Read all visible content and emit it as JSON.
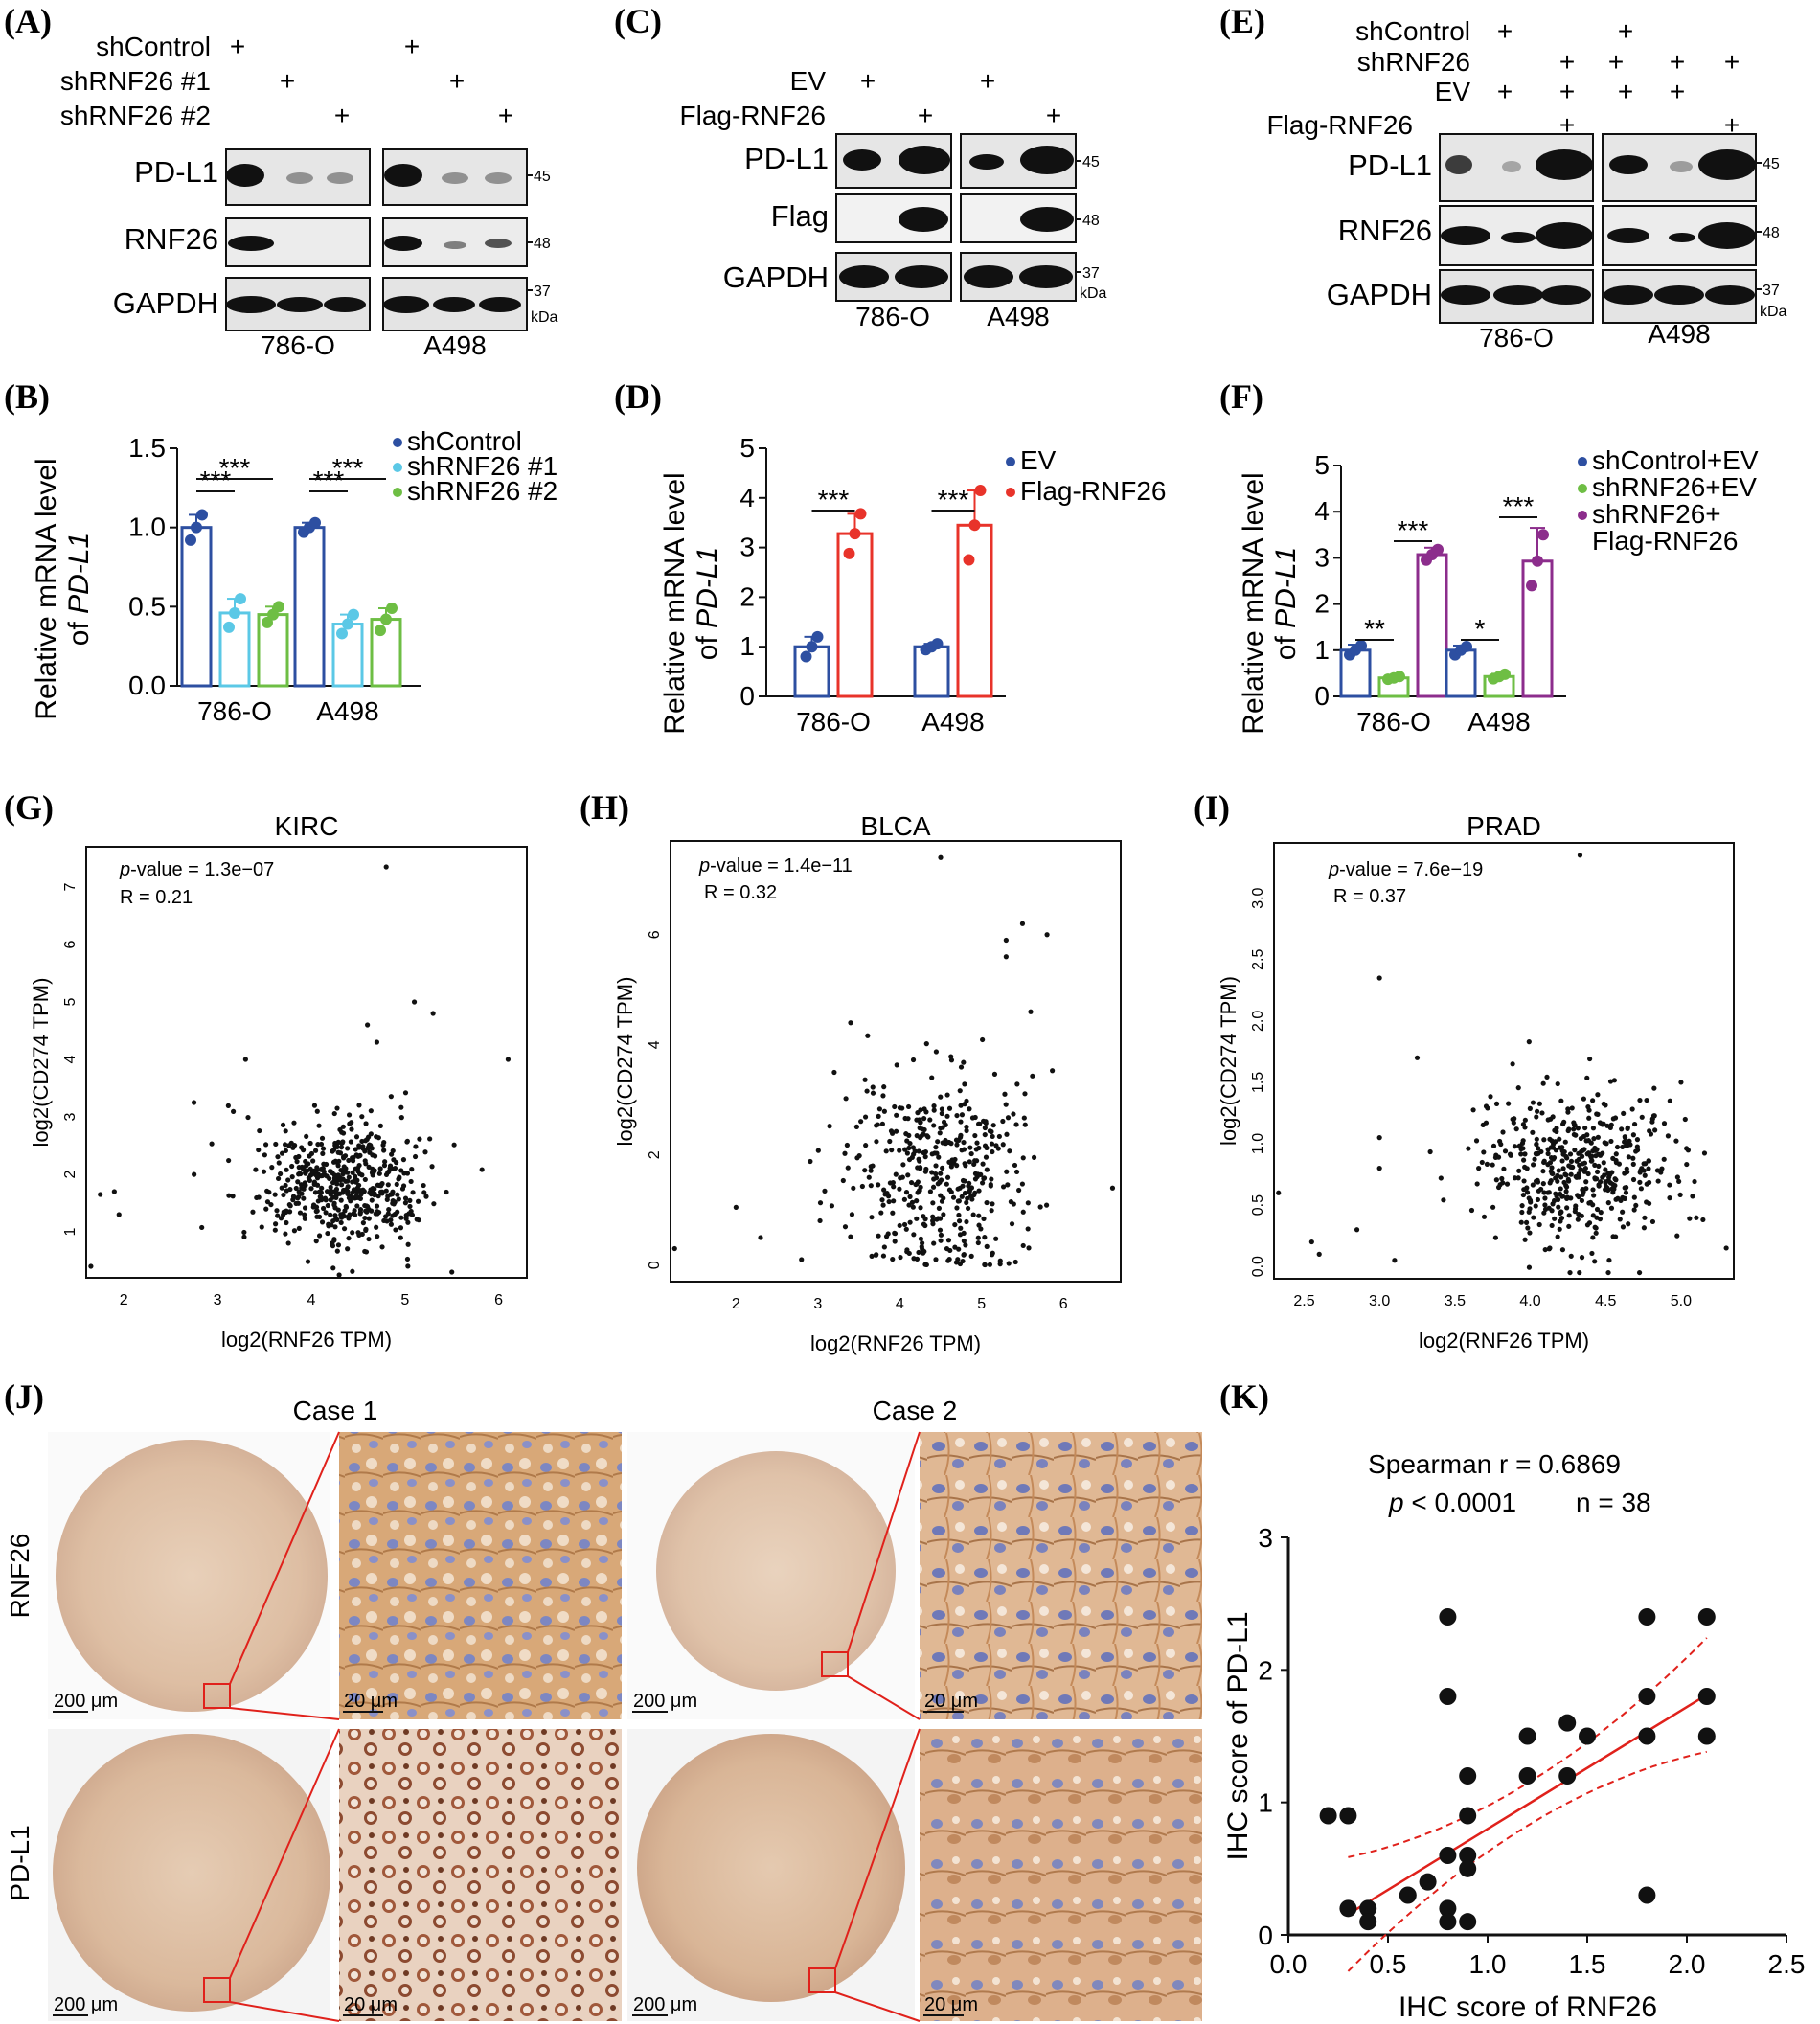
{
  "panels": {
    "A": {
      "label": "(A)",
      "rows": [
        "shControl",
        "shRNF26 #1",
        "shRNF26 #2"
      ],
      "blots": [
        "PD-L1",
        "RNF26",
        "GAPDH"
      ],
      "markers": [
        "45",
        "48",
        "37",
        "kDa"
      ],
      "cells": [
        "786-O",
        "A498"
      ]
    },
    "C": {
      "label": "(C)",
      "rows": [
        "EV",
        "Flag-RNF26"
      ],
      "blots": [
        "PD-L1",
        "Flag",
        "GAPDH"
      ],
      "markers": [
        "45",
        "48",
        "37",
        "kDa"
      ],
      "cells": [
        "786-O",
        "A498"
      ]
    },
    "E": {
      "label": "(E)",
      "rows": [
        "shControl",
        "shRNF26",
        "EV",
        "Flag-RNF26"
      ],
      "blots": [
        "PD-L1",
        "RNF26",
        "GAPDH"
      ],
      "markers": [
        "45",
        "48",
        "37",
        "kDa"
      ],
      "cells": [
        "786-O",
        "A498"
      ]
    },
    "B": {
      "label": "(B)",
      "ylabel_line1": "Relative mRNA level",
      "ylabel_of": "of ",
      "ylabel_gene": "PD-L1"
    },
    "D": {
      "label": "(D)",
      "ylabel_line1": "Relative mRNA level",
      "ylabel_of": "of ",
      "ylabel_gene": "PD-L1"
    },
    "F": {
      "label": "(F)",
      "ylabel_line1": "Relative mRNA level",
      "ylabel_of": "of ",
      "ylabel_gene": "PD-L1",
      "legend_extra": "Flag-RNF26"
    },
    "G": {
      "label": "(G)",
      "p_text": "-value = 1.3e−07",
      "r_text": "R = 0.21"
    },
    "H": {
      "label": "(H)",
      "p_text": "-value = 1.4e−11",
      "r_text": "R = 0.32"
    },
    "I": {
      "label": "(I)",
      "p_text": "-value = 7.6e−19",
      "r_text": "R = 0.37"
    },
    "J": {
      "label": "(J)",
      "cases": [
        "Case 1",
        "Case 2"
      ],
      "rows": [
        "RNF26",
        "PD-L1"
      ],
      "scale_low": "200 μm",
      "scale_high": "20 μm"
    },
    "K": {
      "label": "(K)",
      "stat_line1": "Spearman r = 0.6869",
      "stat_p": "p",
      "stat_p_rest": " < 0.0001",
      "stat_n": "n = 38"
    }
  },
  "chart_data": [
    {
      "id": "B",
      "type": "bar",
      "categories": [
        "786-O",
        "A498"
      ],
      "series": [
        {
          "name": "shControl",
          "color": "#2d4fa1",
          "values": [
            1.0,
            1.0
          ],
          "err": [
            0.08,
            0.03
          ],
          "points": [
            [
              0.92,
              1.0,
              1.08
            ],
            [
              0.97,
              1.0,
              1.03
            ]
          ]
        },
        {
          "name": "shRNF26 #1",
          "color": "#5bc8e6",
          "values": [
            0.46,
            0.39
          ],
          "err": [
            0.09,
            0.06
          ],
          "points": [
            [
              0.37,
              0.46,
              0.55
            ],
            [
              0.33,
              0.39,
              0.45
            ]
          ]
        },
        {
          "name": "shRNF26 #2",
          "color": "#6ebe44",
          "values": [
            0.45,
            0.42
          ],
          "err": [
            0.05,
            0.07
          ],
          "points": [
            [
              0.4,
              0.45,
              0.5
            ],
            [
              0.35,
              0.42,
              0.49
            ]
          ]
        }
      ],
      "ylim": [
        0.0,
        1.5
      ],
      "yticks": [
        "0.0",
        "0.5",
        "1.0",
        "1.5"
      ],
      "significance": [
        "***",
        "***",
        "***",
        "***"
      ]
    },
    {
      "id": "D",
      "type": "bar",
      "categories": [
        "786-O",
        "A498"
      ],
      "series": [
        {
          "name": "EV",
          "color": "#2d4fa1",
          "values": [
            1.0,
            1.0
          ],
          "err": [
            0.2,
            0.06
          ],
          "points": [
            [
              0.8,
              1.0,
              1.2
            ],
            [
              0.94,
              1.0,
              1.06
            ]
          ]
        },
        {
          "name": "Flag-RNF26",
          "color": "#e8332a",
          "values": [
            3.28,
            3.45
          ],
          "err": [
            0.4,
            0.7
          ],
          "points": [
            [
              2.88,
              3.28,
              3.68
            ],
            [
              2.75,
              3.45,
              4.15
            ]
          ]
        }
      ],
      "ylim": [
        0,
        5
      ],
      "yticks": [
        "0",
        "1",
        "2",
        "3",
        "4",
        "5"
      ],
      "significance": [
        "***",
        "***"
      ]
    },
    {
      "id": "F",
      "type": "bar",
      "categories": [
        "786-O",
        "A498"
      ],
      "series": [
        {
          "name": "shControl+EV",
          "color": "#2d4fa1",
          "values": [
            1.0,
            1.0
          ],
          "err": [
            0.12,
            0.1
          ],
          "points": [
            [
              0.9,
              1.0,
              1.1
            ],
            [
              0.9,
              1.0,
              1.08
            ]
          ]
        },
        {
          "name": "shRNF26+EV",
          "color": "#6ebe44",
          "values": [
            0.4,
            0.43
          ],
          "err": [
            0.04,
            0.06
          ],
          "points": [
            [
              0.37,
              0.4,
              0.43
            ],
            [
              0.38,
              0.43,
              0.48
            ]
          ]
        },
        {
          "name": "shRNF26+",
          "color": "#8c2d8c",
          "values": [
            3.07,
            2.93
          ],
          "err": [
            0.15,
            0.72
          ],
          "points": [
            [
              2.95,
              3.07,
              3.18
            ],
            [
              2.4,
              2.93,
              3.5
            ]
          ]
        }
      ],
      "ylim": [
        0,
        5
      ],
      "yticks": [
        "0",
        "1",
        "2",
        "3",
        "4",
        "5"
      ],
      "significance": [
        "**",
        "***",
        "*",
        "***"
      ]
    },
    {
      "id": "G",
      "type": "scatter",
      "title": "KIRC",
      "xlabel": "log2(RNF26 TPM)",
      "ylabel": "log2(CD274 TPM)",
      "xlim": [
        1.6,
        6.3
      ],
      "ylim": [
        0.2,
        7.7
      ],
      "xticks": [
        2,
        3,
        4,
        5,
        6
      ],
      "yticks": [
        1,
        2,
        3,
        4,
        5,
        6,
        7
      ],
      "n_points": 520,
      "center": [
        4.3,
        1.85
      ],
      "spread": [
        0.45,
        0.55
      ],
      "outliers": [
        [
          1.65,
          0.4
        ],
        [
          1.75,
          1.65
        ],
        [
          1.9,
          1.7
        ],
        [
          1.95,
          1.3
        ],
        [
          2.75,
          3.25
        ],
        [
          3.3,
          4.0
        ],
        [
          4.8,
          7.35
        ],
        [
          5.1,
          5.0
        ],
        [
          5.3,
          4.8
        ],
        [
          4.6,
          4.6
        ],
        [
          6.1,
          4.0
        ],
        [
          5.5,
          0.3
        ],
        [
          4.7,
          4.3
        ]
      ]
    },
    {
      "id": "H",
      "type": "scatter",
      "title": "BLCA",
      "xlabel": "log2(RNF26 TPM)",
      "ylabel": "log2(CD274 TPM)",
      "xlim": [
        1.2,
        6.7
      ],
      "ylim": [
        -0.3,
        7.7
      ],
      "xticks": [
        2,
        3,
        4,
        5,
        6
      ],
      "yticks": [
        0,
        2,
        4,
        6
      ],
      "n_points": 420,
      "center": [
        4.5,
        1.7
      ],
      "spread": [
        0.55,
        1.25
      ],
      "outliers": [
        [
          1.25,
          0.3
        ],
        [
          2.0,
          1.05
        ],
        [
          2.3,
          0.5
        ],
        [
          2.8,
          0.1
        ],
        [
          3.2,
          3.5
        ],
        [
          3.4,
          4.4
        ],
        [
          4.5,
          7.4
        ],
        [
          5.3,
          5.9
        ],
        [
          5.5,
          6.2
        ],
        [
          5.8,
          6.0
        ],
        [
          6.6,
          1.4
        ],
        [
          5.3,
          5.6
        ],
        [
          5.6,
          4.6
        ]
      ]
    },
    {
      "id": "I",
      "type": "scatter",
      "title": "PRAD",
      "xlabel": "log2(RNF26 TPM)",
      "ylabel": "log2(CD274 TPM)",
      "xlim": [
        2.3,
        5.35
      ],
      "ylim": [
        -0.1,
        3.45
      ],
      "xticks": [
        "2.5",
        "3.0",
        "3.5",
        "4.0",
        "4.5",
        "5.0"
      ],
      "yticks": [
        "0.0",
        "0.5",
        "1.0",
        "1.5",
        "2.0",
        "2.5",
        "3.0"
      ],
      "n_points": 480,
      "center": [
        4.3,
        0.8
      ],
      "spread": [
        0.33,
        0.32
      ],
      "outliers": [
        [
          2.33,
          0.6
        ],
        [
          2.55,
          0.2
        ],
        [
          2.6,
          0.1
        ],
        [
          3.0,
          2.35
        ],
        [
          3.0,
          1.05
        ],
        [
          3.0,
          0.8
        ],
        [
          3.25,
          1.7
        ],
        [
          4.33,
          3.35
        ],
        [
          5.0,
          1.5
        ],
        [
          5.3,
          0.15
        ],
        [
          2.85,
          0.3
        ],
        [
          3.1,
          0.05
        ]
      ]
    },
    {
      "id": "K",
      "type": "scatter",
      "xlabel": "IHC score of RNF26",
      "ylabel": "IHC score of PD-L1",
      "xlim": [
        0.0,
        2.5
      ],
      "ylim": [
        0,
        3
      ],
      "xticks": [
        "0.0",
        "0.5",
        "1.0",
        "1.5",
        "2.0",
        "2.5"
      ],
      "yticks": [
        "0",
        "1",
        "2",
        "3"
      ],
      "points": [
        [
          0.2,
          0.9
        ],
        [
          0.3,
          0.9
        ],
        [
          0.3,
          0.2
        ],
        [
          0.4,
          0.2
        ],
        [
          0.4,
          0.1
        ],
        [
          0.6,
          0.3
        ],
        [
          0.7,
          0.4
        ],
        [
          0.8,
          2.4
        ],
        [
          0.8,
          1.8
        ],
        [
          0.8,
          0.6
        ],
        [
          0.8,
          0.2
        ],
        [
          0.8,
          0.1
        ],
        [
          0.9,
          1.2
        ],
        [
          0.9,
          0.9
        ],
        [
          0.9,
          0.6
        ],
        [
          0.9,
          0.5
        ],
        [
          0.9,
          0.1
        ],
        [
          1.2,
          1.5
        ],
        [
          1.2,
          1.2
        ],
        [
          1.4,
          1.6
        ],
        [
          1.4,
          1.2
        ],
        [
          1.5,
          1.5
        ],
        [
          1.8,
          2.4
        ],
        [
          1.8,
          1.8
        ],
        [
          1.8,
          1.5
        ],
        [
          1.8,
          0.3
        ],
        [
          2.1,
          2.4
        ],
        [
          2.1,
          1.8
        ],
        [
          2.1,
          1.5
        ]
      ],
      "fit": {
        "slope": 0.92,
        "intercept": -0.12,
        "x_range": [
          0.3,
          2.1
        ]
      }
    }
  ]
}
